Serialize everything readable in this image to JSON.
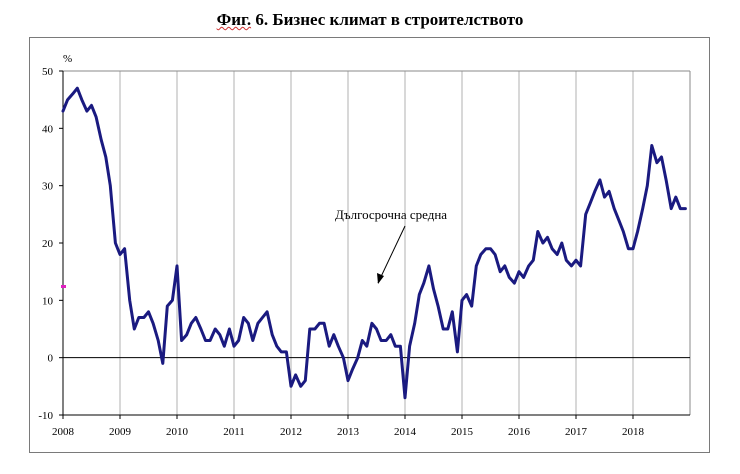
{
  "chart_data": {
    "type": "line",
    "title_prefix": "Фиг.",
    "title_rest": " 6. Бизнес климат в строителството",
    "ylabel": "%",
    "xlabel": "",
    "ylim": [
      -10,
      50
    ],
    "yticks": [
      -10,
      0,
      10,
      20,
      30,
      40,
      50
    ],
    "xlim": [
      2008.0,
      2019.0
    ],
    "xticks": [
      "2008",
      "2009",
      "2010",
      "2011",
      "2012",
      "2013",
      "2014",
      "2015",
      "2016",
      "2017",
      "2018"
    ],
    "grid": "vertical gridlines at each year",
    "line_color": "#1a1a80",
    "annotation": {
      "text": "Дългосрочна средна",
      "points_to_value": 12.5
    },
    "series": [
      {
        "x": [
          2008.0,
          2008.08,
          2008.17,
          2008.25,
          2008.33,
          2008.42,
          2008.5,
          2008.58,
          2008.67,
          2008.75,
          2008.83,
          2008.92,
          2009.0,
          2009.08,
          2009.17,
          2009.25,
          2009.33,
          2009.42,
          2009.5,
          2009.58,
          2009.67,
          2009.75,
          2009.83,
          2009.92,
          2010.0,
          2010.08,
          2010.17,
          2010.25,
          2010.33,
          2010.42,
          2010.5,
          2010.58,
          2010.67,
          2010.75,
          2010.83,
          2010.92,
          2011.0,
          2011.08,
          2011.17,
          2011.25,
          2011.33,
          2011.42,
          2011.5,
          2011.58,
          2011.67,
          2011.75,
          2011.83,
          2011.92,
          2012.0,
          2012.08,
          2012.17,
          2012.25,
          2012.33,
          2012.42,
          2012.5,
          2012.58,
          2012.67,
          2012.75,
          2012.83,
          2012.92,
          2013.0,
          2013.08,
          2013.17,
          2013.25,
          2013.33,
          2013.42,
          2013.5,
          2013.58,
          2013.67,
          2013.75,
          2013.83,
          2013.92,
          2014.0,
          2014.08,
          2014.17,
          2014.25,
          2014.33,
          2014.42,
          2014.5,
          2014.58,
          2014.67,
          2014.75,
          2014.83,
          2014.92,
          2015.0,
          2015.08,
          2015.17,
          2015.25,
          2015.33,
          2015.42,
          2015.5,
          2015.58,
          2015.67,
          2015.75,
          2015.83,
          2015.92,
          2016.0,
          2016.08,
          2016.17,
          2016.25,
          2016.33,
          2016.42,
          2016.5,
          2016.58,
          2016.67,
          2016.75,
          2016.83,
          2016.92,
          2017.0,
          2017.08,
          2017.17,
          2017.25,
          2017.33,
          2017.42,
          2017.5,
          2017.58,
          2017.67,
          2017.75,
          2017.83,
          2017.92,
          2018.0,
          2018.08,
          2018.17,
          2018.25,
          2018.33,
          2018.42,
          2018.5,
          2018.58,
          2018.67,
          2018.75,
          2018.83,
          2018.92
        ],
        "values": [
          43,
          45,
          46,
          47,
          45,
          43,
          44,
          42,
          38,
          35,
          30,
          20,
          18,
          19,
          10,
          5,
          7,
          7,
          8,
          6,
          3,
          -1,
          9,
          10,
          16,
          3,
          4,
          6,
          7,
          5,
          3,
          3,
          5,
          4,
          2,
          5,
          2,
          3,
          7,
          6,
          3,
          6,
          7,
          8,
          4,
          2,
          1,
          1,
          -5,
          -3,
          -5,
          -4,
          5,
          5,
          6,
          6,
          2,
          4,
          2,
          0,
          -4,
          -2,
          0,
          3,
          2,
          6,
          5,
          3,
          3,
          4,
          2,
          2,
          -7,
          2,
          6,
          11,
          13,
          16,
          12,
          9,
          5,
          5,
          8,
          1,
          10,
          11,
          9,
          16,
          18,
          19,
          19,
          18,
          15,
          16,
          14,
          13,
          15,
          14,
          16,
          17,
          22,
          20,
          21,
          19,
          18,
          20,
          17,
          16,
          17,
          16,
          25,
          27,
          29,
          31,
          28,
          29,
          26,
          24,
          22,
          19,
          19,
          22,
          26,
          30,
          37,
          34,
          35,
          31,
          26,
          28,
          26,
          26
        ]
      }
    ]
  }
}
